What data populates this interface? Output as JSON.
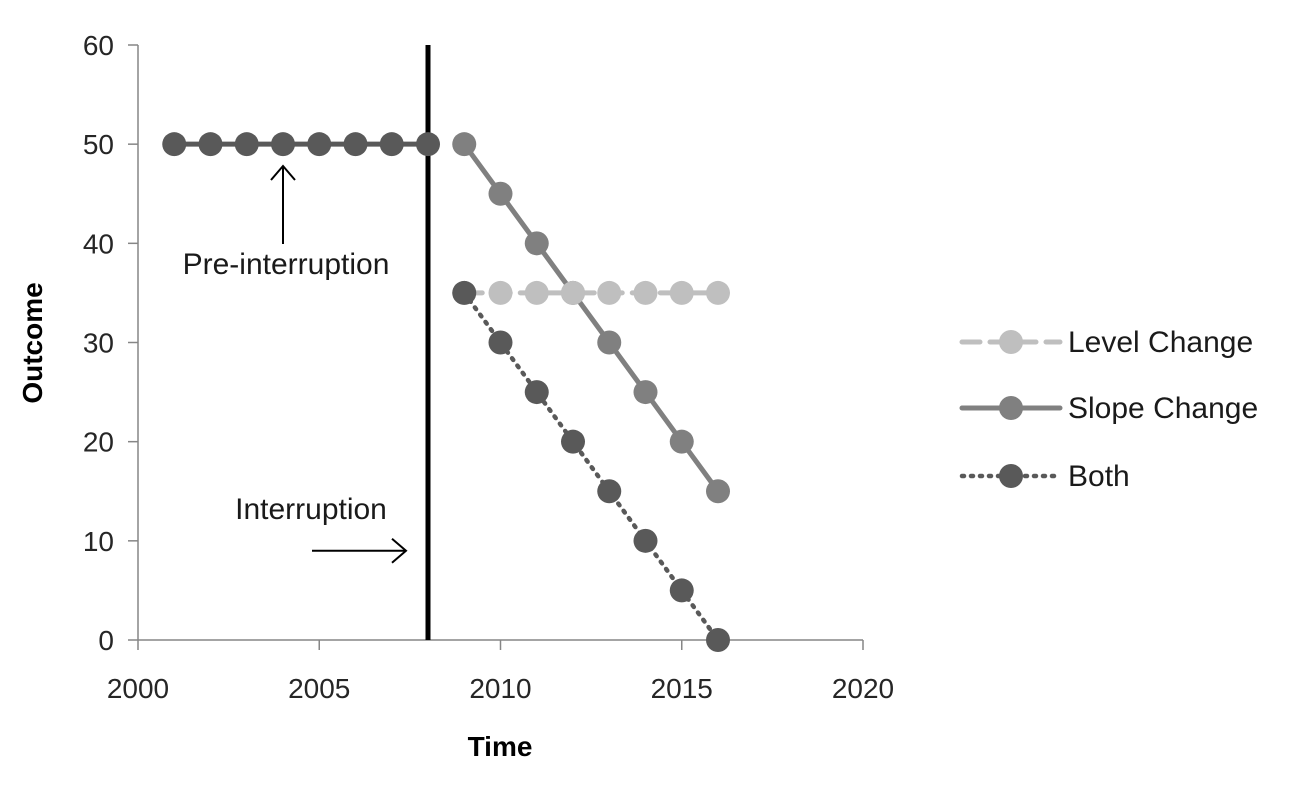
{
  "chart_data": {
    "type": "line",
    "title": "",
    "xlabel": "Time",
    "ylabel": "Outcome",
    "xlim": [
      2000,
      2020
    ],
    "ylim": [
      0,
      60
    ],
    "x_ticks": [
      "2000",
      "2005",
      "2010",
      "2015",
      "2020"
    ],
    "y_ticks": [
      "0",
      "10",
      "20",
      "30",
      "40",
      "50",
      "60"
    ],
    "grid": false,
    "legend_position": "right",
    "colors": {
      "pre": "#595959",
      "level": "#bfbfbf",
      "slope": "#808080",
      "both": "#595959",
      "interruption": "#000000"
    },
    "pre_series": {
      "name": "Pre-interruption",
      "x": [
        2001,
        2002,
        2003,
        2004,
        2005,
        2006,
        2007,
        2008
      ],
      "y": [
        50,
        50,
        50,
        50,
        50,
        50,
        50,
        50
      ]
    },
    "series": [
      {
        "name": "Level Change",
        "style": "dashed",
        "x": [
          2009,
          2010,
          2011,
          2012,
          2013,
          2014,
          2015,
          2016
        ],
        "y": [
          35,
          35,
          35,
          35,
          35,
          35,
          35,
          35
        ]
      },
      {
        "name": "Slope Change",
        "style": "solid",
        "x": [
          2009,
          2010,
          2011,
          2012,
          2013,
          2014,
          2015,
          2016
        ],
        "y": [
          50,
          45,
          40,
          35,
          30,
          25,
          20,
          15
        ]
      },
      {
        "name": "Both",
        "style": "dotted",
        "x": [
          2009,
          2010,
          2011,
          2012,
          2013,
          2014,
          2015,
          2016
        ],
        "y": [
          35,
          30,
          25,
          20,
          15,
          10,
          5,
          0
        ]
      }
    ],
    "interruption_x": 2008,
    "annotations": {
      "pre_interruption": {
        "text": "Pre-interruption",
        "x": 2004,
        "y": 50
      },
      "interruption": {
        "text": "Interruption",
        "x": 2008,
        "y": 9
      }
    }
  }
}
